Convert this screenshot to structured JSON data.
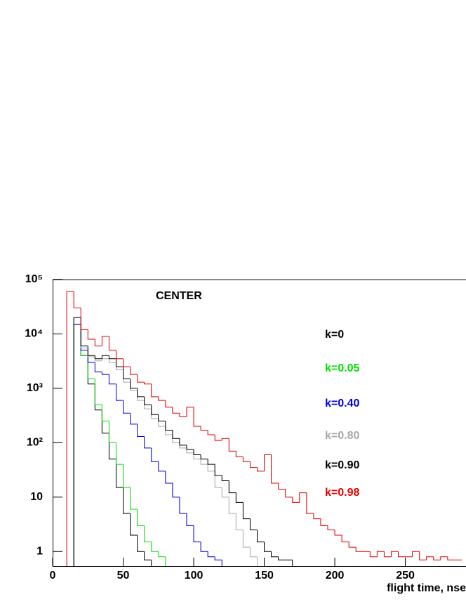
{
  "chart_data": {
    "type": "histogram",
    "title": "CENTER",
    "xlabel": "flight time, nse",
    "log_y": true,
    "xlim": [
      0,
      293
    ],
    "xticks": [
      0,
      50,
      100,
      150,
      200,
      250
    ],
    "ylim": [
      0.54,
      100000
    ],
    "yticks": [
      1,
      10,
      {
        "value": 100,
        "label": "10²"
      },
      {
        "value": 1000,
        "label": "10³"
      },
      {
        "value": 10000,
        "label": "10⁴"
      },
      {
        "value": 100000,
        "label": "10⁵"
      }
    ],
    "bins": [
      10,
      15,
      20,
      25,
      30,
      35,
      40,
      45,
      50,
      55,
      60,
      65,
      70,
      75,
      80,
      85,
      90,
      95,
      100,
      105,
      110,
      115,
      120,
      125,
      130,
      135,
      140,
      145,
      150,
      155,
      160,
      165,
      170,
      175,
      180,
      185,
      190,
      195,
      200,
      205,
      210,
      215,
      220,
      225,
      230,
      235,
      240,
      245,
      250,
      255,
      260,
      265,
      270,
      275,
      280,
      285,
      290
    ],
    "series": [
      {
        "name": "k=0",
        "color": "#000000",
        "values": [
          null,
          15000,
          4000,
          1200,
          400,
          150,
          50,
          15,
          5,
          2,
          1,
          0.7,
          null,
          null,
          null,
          null,
          null,
          null,
          null,
          null,
          null,
          null,
          null,
          null,
          null,
          null,
          null,
          null,
          null,
          null,
          null,
          null,
          null,
          null,
          null,
          null,
          null,
          null,
          null,
          null,
          null,
          null,
          null,
          null,
          null,
          null,
          null,
          null,
          null,
          null,
          null,
          null,
          null,
          null,
          null,
          null
        ]
      },
      {
        "name": "k=0.05",
        "color": "#00e000",
        "values": [
          null,
          15000,
          4000,
          1500,
          500,
          250,
          100,
          40,
          15,
          6,
          3,
          1.5,
          1,
          0.8,
          null,
          null,
          null,
          null,
          null,
          null,
          null,
          null,
          null,
          null,
          null,
          null,
          null,
          null,
          null,
          null,
          null,
          null,
          null,
          null,
          null,
          null,
          null,
          null,
          null,
          null,
          null,
          null,
          null,
          null,
          null,
          null,
          null,
          null,
          null,
          null,
          null,
          null,
          null,
          null,
          null,
          null
        ]
      },
      {
        "name": "k=0.40",
        "color": "#0000e0",
        "values": [
          null,
          15000,
          5000,
          3000,
          2000,
          1800,
          1200,
          600,
          350,
          220,
          130,
          80,
          45,
          30,
          18,
          10,
          5,
          3,
          1.5,
          1,
          0.8,
          0.7,
          null,
          null,
          null,
          null,
          null,
          null,
          null,
          null,
          null,
          null,
          null,
          null,
          null,
          null,
          null,
          null,
          null,
          null,
          null,
          null,
          null,
          null,
          null,
          null,
          null,
          null,
          null,
          null,
          null,
          null,
          null,
          null,
          null,
          null
        ]
      },
      {
        "name": "k=0.80",
        "color": "#a8a8a8",
        "values": [
          null,
          20000,
          5500,
          3800,
          3200,
          3500,
          3000,
          2200,
          1300,
          900,
          600,
          420,
          280,
          200,
          140,
          100,
          80,
          65,
          50,
          40,
          30,
          15,
          10,
          5,
          2.5,
          1.2,
          0.8,
          null,
          null,
          null,
          null,
          null,
          null,
          null,
          null,
          null,
          null,
          null,
          null,
          null,
          null,
          null,
          null,
          null,
          null,
          null,
          null,
          null,
          null,
          null,
          null,
          null,
          null,
          null,
          null,
          null
        ]
      },
      {
        "name": "k=0.90",
        "color": "#000000",
        "values": [
          null,
          20000,
          6000,
          4000,
          3500,
          4000,
          3500,
          2500,
          1500,
          1000,
          700,
          500,
          330,
          250,
          170,
          120,
          90,
          75,
          60,
          50,
          40,
          25,
          20,
          12,
          8,
          4,
          2.5,
          1.5,
          1,
          0.8,
          0.7,
          0.7,
          null,
          null,
          null,
          null,
          null,
          null,
          null,
          null,
          null,
          null,
          null,
          null,
          null,
          null,
          null,
          null,
          null,
          null,
          null,
          null,
          null,
          null,
          null,
          null
        ]
      },
      {
        "name": "k=0.98",
        "color": "#e00000",
        "values": [
          60000,
          30000,
          12000,
          8000,
          6000,
          9000,
          5000,
          3500,
          2500,
          1800,
          1300,
          1200,
          700,
          600,
          450,
          350,
          300,
          450,
          200,
          170,
          140,
          110,
          120,
          70,
          55,
          45,
          35,
          30,
          60,
          18,
          14,
          10,
          8,
          12,
          5,
          4,
          3,
          2.5,
          2,
          1.5,
          1.2,
          1,
          1,
          0.8,
          1,
          0.8,
          1,
          0.8,
          0.8,
          1,
          0.7,
          0.8,
          0.7,
          0.8,
          0.7,
          0.7
        ]
      }
    ]
  }
}
